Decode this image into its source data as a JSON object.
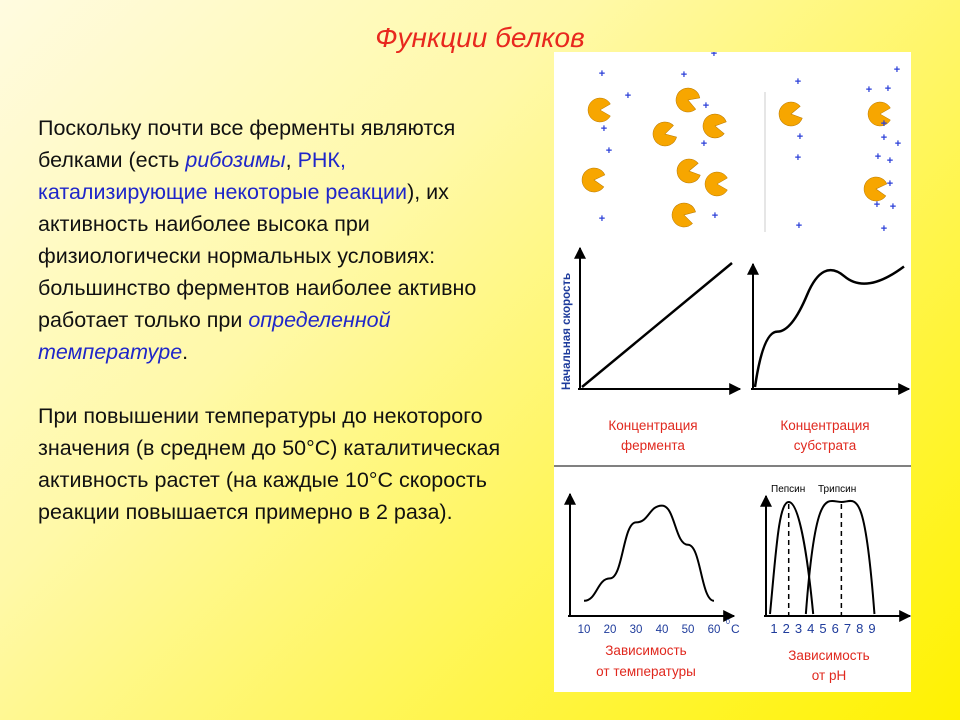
{
  "title": "Функции белков",
  "paragraph1": {
    "a": "Поскольку почти все ферменты являются белками (есть ",
    "b": "рибозимы",
    "c": ", ",
    "d": "РНК, катализирующие некоторые реакции",
    "e": "), их активность наиболее высока при физиологически нормальных условиях: большинство ферментов наиболее активно работает только при ",
    "f": "определенной температуре",
    "g": "."
  },
  "paragraph2": "При повышении температуры до некоторого значения (в среднем до 50°С) каталитическая активность растет (на каждые 10°С скорость реакции повышается примерно в 2 раза).",
  "colors": {
    "title": "#e8281e",
    "blue_text": "#1f26c9",
    "enzyme": "#f7a600",
    "substrate": "#2b3fd8",
    "red_label": "#e0281e",
    "blue_label": "#1f3c9c"
  },
  "figure": {
    "y_axis_label": "Начальная скорость",
    "enzyme_concentration_label": [
      "Концентрация",
      "фермента"
    ],
    "substrate_concentration_label": [
      "Концентрация",
      "субстрата"
    ],
    "temp_ticks": [
      "10",
      "20",
      "30",
      "40",
      "50",
      "60"
    ],
    "temp_unit": "С",
    "temp_unit_sup": "0",
    "ph_ticks": [
      "1",
      "2",
      "3",
      "4",
      "5",
      "6",
      "7",
      "8",
      "9"
    ],
    "pepsin_label": "Пепсин",
    "trypsin_label": "Трипсин",
    "temp_dependence_label": [
      "Зависимость",
      "от температуры"
    ],
    "ph_dependence_label": [
      "Зависимость",
      "от рН"
    ]
  },
  "chart_data": [
    {
      "type": "line",
      "series": [
        {
          "values": [
            [
              0,
              0
            ],
            [
              1,
              1
            ]
          ]
        }
      ],
      "xlabel": "Концентрация фермента",
      "ylabel": "Начальная скорость"
    },
    {
      "type": "line",
      "series": [
        {
          "values": [
            [
              0,
              0
            ],
            [
              0.15,
              0.45
            ],
            [
              0.35,
              0.75
            ],
            [
              0.6,
              0.9
            ],
            [
              1,
              0.98
            ]
          ]
        }
      ],
      "xlabel": "Концентрация субстрата",
      "ylabel": "Начальная скорость"
    },
    {
      "type": "line",
      "x": [
        10,
        20,
        30,
        40,
        50,
        60
      ],
      "series": [
        {
          "values": [
            0.1,
            0.3,
            0.8,
            0.95,
            0.6,
            0.1
          ]
        }
      ],
      "xlabel": "Зависимость от температуры",
      "x_unit": "С"
    },
    {
      "type": "line",
      "x": [
        1,
        2,
        3,
        4,
        5,
        6,
        7,
        8,
        9
      ],
      "series": [
        {
          "name": "Пепсин",
          "values": [
            0.1,
            1.0,
            0.1,
            0.0,
            0.0,
            0.0,
            0.0,
            0.0,
            0.0
          ]
        },
        {
          "name": "Трипсин",
          "values": [
            0.0,
            0.0,
            0.0,
            0.05,
            0.5,
            0.95,
            0.5,
            0.05,
            0.0
          ]
        }
      ],
      "xlabel": "Зависимость от рН"
    }
  ]
}
